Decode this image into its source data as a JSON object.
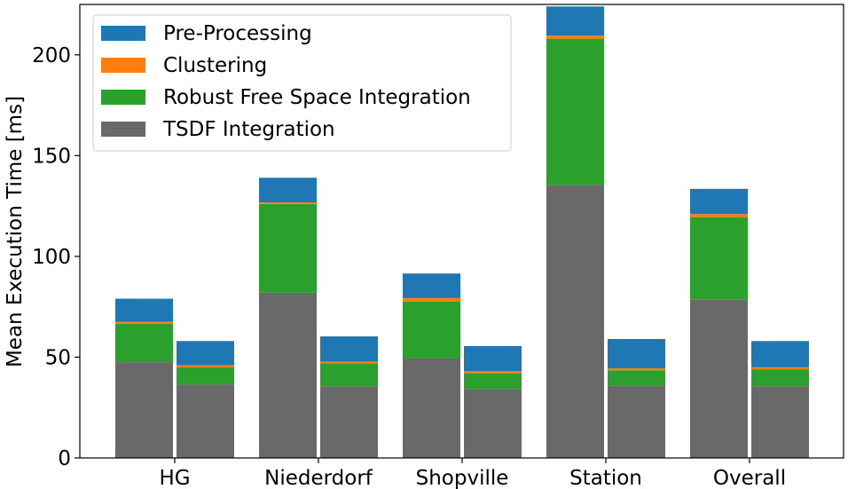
{
  "chart_data": {
    "type": "bar",
    "stacked": true,
    "bars_per_category": 2,
    "categories": [
      "HG",
      "Niederdorf",
      "Shopville",
      "Station",
      "Overall"
    ],
    "ylabel": "Mean Execution Time [ms]",
    "xlabel": "",
    "ylim": [
      0,
      225
    ],
    "yticks": [
      0,
      50,
      100,
      150,
      200
    ],
    "grid": false,
    "legend_position": "top-left",
    "series": [
      {
        "name": "TSDF Integration",
        "color": "#696969",
        "values": [
          [
            47.5,
            36.5
          ],
          [
            82,
            35.5
          ],
          [
            49.5,
            34
          ],
          [
            135.5,
            36
          ],
          [
            78.5,
            35.5
          ]
        ]
      },
      {
        "name": "Robust Free Space Integration",
        "color": "#2ca02c",
        "values": [
          [
            19,
            8.5
          ],
          [
            44,
            11.5
          ],
          [
            28,
            8
          ],
          [
            72.5,
            7.5
          ],
          [
            41,
            8.5
          ]
        ]
      },
      {
        "name": "Clustering",
        "color": "#ff7f0e",
        "values": [
          [
            1,
            1
          ],
          [
            0.8,
            0.8
          ],
          [
            1.8,
            1
          ],
          [
            1.5,
            1
          ],
          [
            1.5,
            1
          ]
        ]
      },
      {
        "name": "Pre-Processing",
        "color": "#1f77b4",
        "values": [
          [
            11.5,
            12
          ],
          [
            12.2,
            12.5
          ],
          [
            12.2,
            12.5
          ],
          [
            14.5,
            14.5
          ],
          [
            12.5,
            13
          ]
        ]
      }
    ],
    "legend_order": [
      "Pre-Processing",
      "Clustering",
      "Robust Free Space Integration",
      "TSDF Integration"
    ]
  }
}
